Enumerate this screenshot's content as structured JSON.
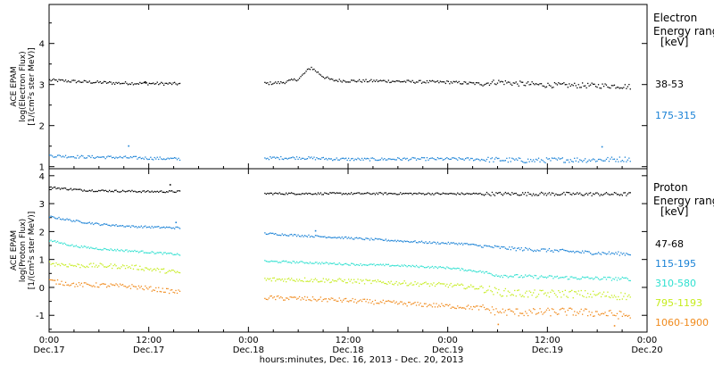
{
  "chart_data": [
    {
      "type": "scatter",
      "panel": "electron",
      "ylabel_lines": [
        "ACE EPAM",
        "log(Electron Flux)",
        "[1/(cm²s ster MeV)]"
      ],
      "ylim": [
        0.95,
        4.95
      ],
      "yticks": [
        1,
        2,
        3,
        4
      ],
      "legend_title": [
        "Electron",
        "Energy range",
        "[keV]"
      ],
      "series": [
        {
          "name": "38-53",
          "color": "#000000",
          "points": [
            [
              0,
              3.12
            ],
            [
              4,
              3.08
            ],
            [
              8,
              3.05
            ],
            [
              12,
              3.04
            ],
            [
              15.5,
              3.03
            ],
            [
              26,
              3.04
            ],
            [
              28,
              3.06
            ],
            [
              30,
              3.15
            ],
            [
              31,
              3.35
            ],
            [
              31.5,
              3.43
            ],
            [
              32,
              3.35
            ],
            [
              33,
              3.2
            ],
            [
              34,
              3.12
            ],
            [
              36,
              3.1
            ],
            [
              40,
              3.1
            ],
            [
              44,
              3.08
            ],
            [
              48,
              3.07
            ],
            [
              52,
              3.03
            ],
            [
              54,
              3.08
            ],
            [
              56,
              3.04
            ],
            [
              60,
              3.0
            ],
            [
              64,
              2.99
            ],
            [
              68,
              2.98
            ],
            [
              70,
              2.96
            ]
          ],
          "outliers": [
            [
              11.5,
              3.08
            ]
          ]
        },
        {
          "name": "175-315",
          "color": "#1a82d6",
          "points": [
            [
              0,
              1.28
            ],
            [
              4,
              1.25
            ],
            [
              8,
              1.24
            ],
            [
              12,
              1.22
            ],
            [
              15.5,
              1.2
            ],
            [
              26,
              1.22
            ],
            [
              30,
              1.23
            ],
            [
              34,
              1.2
            ],
            [
              38,
              1.19
            ],
            [
              42,
              1.2
            ],
            [
              46,
              1.2
            ],
            [
              50,
              1.2
            ],
            [
              54,
              1.18
            ],
            [
              58,
              1.16
            ],
            [
              62,
              1.18
            ],
            [
              66,
              1.18
            ],
            [
              70,
              1.2
            ]
          ],
          "outliers": [
            [
              9.5,
              1.52
            ],
            [
              66.5,
              1.5
            ]
          ]
        }
      ]
    },
    {
      "type": "scatter",
      "panel": "proton",
      "ylabel_lines": [
        "ACE EPAM",
        "log(Proton Flux)",
        "[1/(cm²s ster MeV)]"
      ],
      "ylim": [
        -1.6,
        4.25
      ],
      "yticks": [
        -1,
        0,
        1,
        2,
        3,
        4
      ],
      "legend_title": [
        "Proton",
        "Energy range",
        "[keV]"
      ],
      "series": [
        {
          "name": "47-68",
          "color": "#000000",
          "points": [
            [
              0,
              3.6
            ],
            [
              4,
              3.5
            ],
            [
              8,
              3.47
            ],
            [
              12,
              3.45
            ],
            [
              15.5,
              3.45
            ],
            [
              26,
              3.38
            ],
            [
              34,
              3.38
            ],
            [
              42,
              3.38
            ],
            [
              50,
              3.37
            ],
            [
              58,
              3.37
            ],
            [
              66,
              3.36
            ],
            [
              70,
              3.36
            ]
          ],
          "outliers": [
            [
              14.5,
              3.7
            ]
          ]
        },
        {
          "name": "115-195",
          "color": "#1a82d6",
          "points": [
            [
              0,
              2.55
            ],
            [
              3,
              2.4
            ],
            [
              6,
              2.28
            ],
            [
              10,
              2.2
            ],
            [
              15.5,
              2.15
            ],
            [
              26,
              1.95
            ],
            [
              30,
              1.88
            ],
            [
              34,
              1.82
            ],
            [
              40,
              1.72
            ],
            [
              46,
              1.62
            ],
            [
              50,
              1.58
            ],
            [
              52,
              1.5
            ],
            [
              56,
              1.4
            ],
            [
              60,
              1.35
            ],
            [
              66,
              1.25
            ],
            [
              70,
              1.22
            ]
          ],
          "outliers": [
            [
              15.2,
              2.35
            ],
            [
              32,
              2.05
            ]
          ]
        },
        {
          "name": "310-580",
          "color": "#2fe0d0",
          "points": [
            [
              0,
              1.7
            ],
            [
              3,
              1.5
            ],
            [
              6,
              1.4
            ],
            [
              10,
              1.32
            ],
            [
              15.5,
              1.2
            ],
            [
              26,
              0.95
            ],
            [
              30,
              0.92
            ],
            [
              36,
              0.85
            ],
            [
              42,
              0.8
            ],
            [
              48,
              0.72
            ],
            [
              52,
              0.58
            ],
            [
              54,
              0.45
            ],
            [
              58,
              0.4
            ],
            [
              62,
              0.37
            ],
            [
              66,
              0.34
            ],
            [
              70,
              0.32
            ]
          ],
          "outliers": []
        },
        {
          "name": "795-1193",
          "color": "#c6ec1e",
          "points": [
            [
              0,
              0.88
            ],
            [
              3,
              0.8
            ],
            [
              6,
              0.8
            ],
            [
              10,
              0.75
            ],
            [
              15.5,
              0.55
            ],
            [
              26,
              0.3
            ],
            [
              30,
              0.3
            ],
            [
              36,
              0.25
            ],
            [
              42,
              0.18
            ],
            [
              48,
              0.1
            ],
            [
              52,
              0.0
            ],
            [
              54,
              -0.15
            ],
            [
              58,
              -0.22
            ],
            [
              62,
              -0.2
            ],
            [
              66,
              -0.25
            ],
            [
              70,
              -0.3
            ]
          ],
          "outliers": []
        },
        {
          "name": "1060-1900",
          "color": "#f08a1c",
          "points": [
            [
              0,
              0.25
            ],
            [
              3,
              0.12
            ],
            [
              6,
              0.1
            ],
            [
              10,
              0.05
            ],
            [
              15.5,
              -0.15
            ],
            [
              26,
              -0.35
            ],
            [
              30,
              -0.38
            ],
            [
              36,
              -0.45
            ],
            [
              42,
              -0.55
            ],
            [
              48,
              -0.65
            ],
            [
              52,
              -0.72
            ],
            [
              54,
              -0.85
            ],
            [
              58,
              -0.88
            ],
            [
              62,
              -0.85
            ],
            [
              66,
              -0.9
            ],
            [
              70,
              -1.0
            ]
          ],
          "outliers": [
            [
              54,
              -1.3
            ],
            [
              68,
              -1.35
            ]
          ]
        }
      ]
    }
  ],
  "x_axis": {
    "range_hours": [
      0,
      72
    ],
    "data_gaps_hours": [
      [
        15.7,
        25.8
      ]
    ],
    "ticks": [
      {
        "hour": 0,
        "time": "0:00",
        "date": "Dec.17"
      },
      {
        "hour": 12,
        "time": "12:00",
        "date": "Dec.17"
      },
      {
        "hour": 24,
        "time": "0:00",
        "date": "Dec.18"
      },
      {
        "hour": 36,
        "time": "12:00",
        "date": "Dec.18"
      },
      {
        "hour": 48,
        "time": "0:00",
        "date": "Dec.19"
      },
      {
        "hour": 60,
        "time": "12:00",
        "date": "Dec.19"
      },
      {
        "hour": 72,
        "time": "0:00",
        "date": "Dec.20"
      }
    ],
    "label": "hours:minutes, Dec. 16, 2013 - Dec. 20, 2013"
  }
}
